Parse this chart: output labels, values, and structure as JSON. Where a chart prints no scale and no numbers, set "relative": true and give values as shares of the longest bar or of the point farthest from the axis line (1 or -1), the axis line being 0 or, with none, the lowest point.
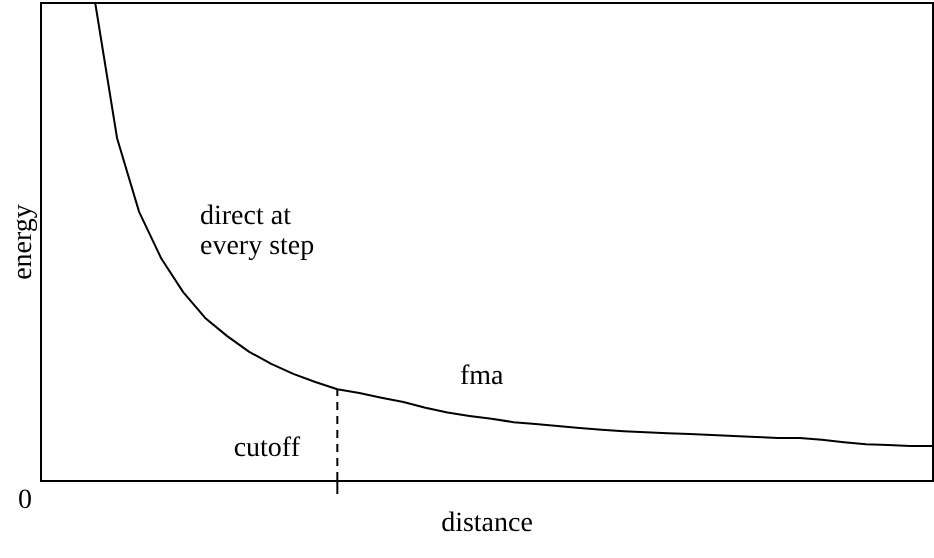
{
  "chart_data": {
    "type": "line",
    "relative": true,
    "xlabel": "distance",
    "ylabel": "energy",
    "marker": "none",
    "line_style": "solid",
    "categories": [
      null,
      null,
      null,
      null,
      null,
      null,
      null,
      null,
      null,
      null,
      null,
      null,
      null,
      null,
      null,
      null,
      null,
      null,
      null,
      null,
      null,
      null,
      null,
      null,
      null,
      null,
      null,
      null,
      null,
      null,
      null,
      null,
      null,
      null,
      null,
      null,
      null,
      null,
      null
    ],
    "series": [
      {
        "color": "#000000",
        "values": [
          1.0,
          0.715,
          0.561,
          0.464,
          0.393,
          0.339,
          0.301,
          0.268,
          0.243,
          0.222,
          0.205,
          0.19,
          0.182,
          0.172,
          0.163,
          0.151,
          0.141,
          0.134,
          0.128,
          0.121,
          0.117,
          0.113,
          0.109,
          0.105,
          0.102,
          0.1,
          0.098,
          0.096,
          0.094,
          0.092,
          0.09,
          0.088,
          0.088,
          0.084,
          0.079,
          0.075,
          0.073,
          0.071,
          0.071
        ]
      }
    ],
    "annotations": [
      "direct at\nevery step",
      "fma",
      "cutoff",
      "0"
    ]
  }
}
